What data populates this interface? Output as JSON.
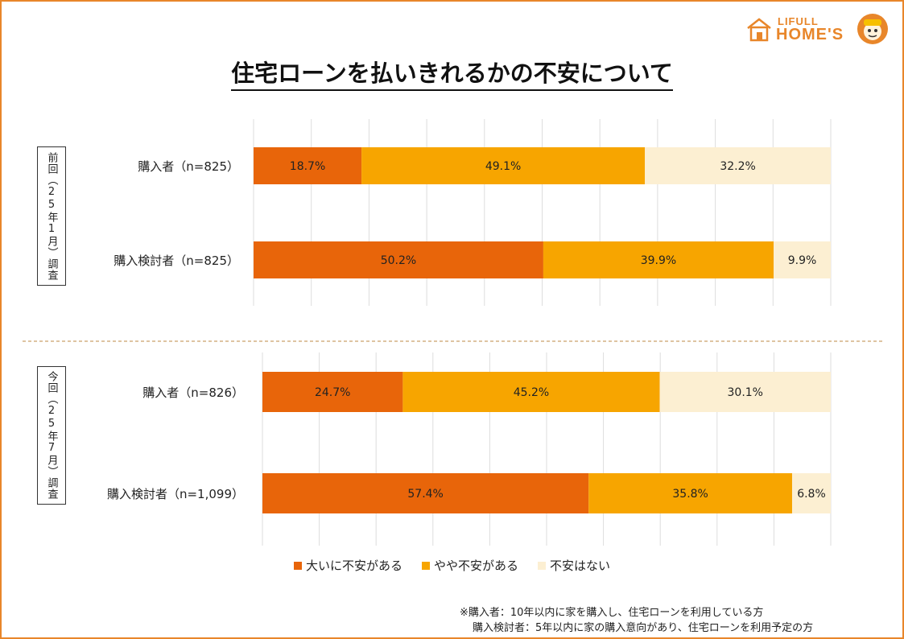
{
  "brand": {
    "line1": "LIFULL",
    "line2": "HOME'S",
    "color": "#e8862a"
  },
  "title": "住宅ローンを払いきれるかの不安について",
  "chart_data": {
    "type": "bar",
    "orientation": "horizontal",
    "stacked": true,
    "percent_axis": [
      0,
      100
    ],
    "grid": true,
    "legend_position": "bottom",
    "series": [
      {
        "name": "大いに不安がある",
        "color": "#e8650a"
      },
      {
        "name": "やや不安がある",
        "color": "#f7a500"
      },
      {
        "name": "不安はない",
        "color": "#fcefd2"
      }
    ],
    "groups": [
      {
        "label": "前回（25年1月）調査",
        "rows": [
          {
            "label": "購入者（n=825）",
            "values": [
              18.7,
              49.1,
              32.2
            ],
            "value_labels": [
              "18.7%",
              "49.1%",
              "32.2%"
            ]
          },
          {
            "label": "購入検討者（n=825）",
            "values": [
              50.2,
              39.9,
              9.9
            ],
            "value_labels": [
              "50.2%",
              "39.9%",
              "9.9%"
            ]
          }
        ]
      },
      {
        "label": "今回（25年7月）調査",
        "rows": [
          {
            "label": "購入者（n=826）",
            "values": [
              24.7,
              45.2,
              30.1
            ],
            "value_labels": [
              "24.7%",
              "45.2%",
              "30.1%"
            ]
          },
          {
            "label": "購入検討者（n=1,099）",
            "values": [
              57.4,
              35.8,
              6.8
            ],
            "value_labels": [
              "57.4%",
              "35.8%",
              "6.8%"
            ]
          }
        ]
      }
    ]
  },
  "notes": [
    "※購入者：10年以内に家を購入し、住宅ローンを利用している方",
    "購入検討者：5年以内に家の購入意向があり、住宅ローンを利用予定の方"
  ],
  "colors": {
    "frame": "#e8862a",
    "grid": "#dddddd",
    "divider": "#c9a06a"
  }
}
